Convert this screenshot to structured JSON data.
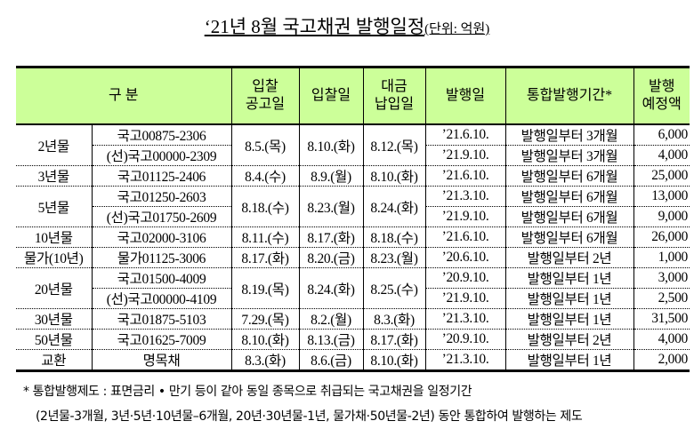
{
  "title": {
    "main": "‘21년 8월 국고채권 발행일정",
    "unit": "(단위: 억원)"
  },
  "headers": {
    "category": "구 분",
    "notice_date": "입찰\n공고일",
    "bid_date": "입찰일",
    "payment_date": "대금\n납입일",
    "issue_date": "발행일",
    "period": "통합발행기간*",
    "amount": "발행\n예정액"
  },
  "groups": [
    {
      "label": "2년물",
      "notice": "8.5.(목)",
      "bid": "8.10.(화)",
      "pay": "8.12.(목)",
      "items": [
        {
          "code": "국고00875-2306",
          "issue": "’21.6.10.",
          "period": "발행일부터 3개월",
          "amount": "6,000"
        },
        {
          "code": "(선)국고00000-2309",
          "issue": "’21.9.10.",
          "period": "발행일부터 3개월",
          "amount": "4,000"
        }
      ]
    },
    {
      "label": "3년물",
      "notice": "8.4.(수)",
      "bid": "8.9.(월)",
      "pay": "8.10.(화)",
      "items": [
        {
          "code": "국고01125-2406",
          "issue": "’21.6.10.",
          "period": "발행일부터 6개월",
          "amount": "25,000"
        }
      ]
    },
    {
      "label": "5년물",
      "notice": "8.18.(수)",
      "bid": "8.23.(월)",
      "pay": "8.24.(화)",
      "items": [
        {
          "code": "국고01250-2603",
          "issue": "’21.3.10.",
          "period": "발행일부터 6개월",
          "amount": "13,000"
        },
        {
          "code": "(선)국고01750-2609",
          "issue": "’21.9.10.",
          "period": "발행일부터 6개월",
          "amount": "9,000"
        }
      ]
    },
    {
      "label": "10년물",
      "notice": "8.11.(수)",
      "bid": "8.17.(화)",
      "pay": "8.18.(수)",
      "items": [
        {
          "code": "국고02000-3106",
          "issue": "’21.6.10.",
          "period": "발행일부터 6개월",
          "amount": "26,000"
        }
      ]
    },
    {
      "label": "물가(10년)",
      "notice": "8.17.(화)",
      "bid": "8.20.(금)",
      "pay": "8.23.(월)",
      "items": [
        {
          "code": "물가01125-3006",
          "issue": "’20.6.10.",
          "period": "발행일부터 2년",
          "amount": "1,000"
        }
      ]
    },
    {
      "label": "20년물",
      "notice": "8.19.(목)",
      "bid": "8.24.(화)",
      "pay": "8.25.(수)",
      "items": [
        {
          "code": "국고01500-4009",
          "issue": "’20.9.10.",
          "period": "발행일부터 1년",
          "amount": "3,000"
        },
        {
          "code": "(선)국고00000-4109",
          "issue": "’21.9.10.",
          "period": "발행일부터 1년",
          "amount": "2,500"
        }
      ]
    },
    {
      "label": "30년물",
      "notice": "7.29.(목)",
      "bid": "8.2.(월)",
      "pay": "8.3.(화)",
      "items": [
        {
          "code": "국고01875-5103",
          "issue": "’21.3.10.",
          "period": "발행일부터 1년",
          "amount": "31,500"
        }
      ]
    },
    {
      "label": "50년물",
      "notice": "8.10.(화)",
      "bid": "8.13.(금)",
      "pay": "8.17.(화)",
      "items": [
        {
          "code": "국고01625-7009",
          "issue": "’20.9.10.",
          "period": "발행일부터 2년",
          "amount": "4,000"
        }
      ]
    },
    {
      "label": "교환",
      "notice": "8.3.(화)",
      "bid": "8.6.(금)",
      "pay": "8.10.(화)",
      "items": [
        {
          "code": "명목채",
          "issue": "’21.3.10.",
          "period": "발행일부터 1년",
          "amount": "2,000"
        }
      ]
    }
  ],
  "footnote": {
    "line1": "* 통합발행제도 : 표면금리 • 만기 등이 같아 동일 종목으로 취급되는 국고채권을 일정기간",
    "line2": "(2년물-3개월, 3년·5년·10년물–6개월, 20년·30년물-1년, 물가채·50년물-2년) 동안 통합하여 발행하는 제도"
  }
}
